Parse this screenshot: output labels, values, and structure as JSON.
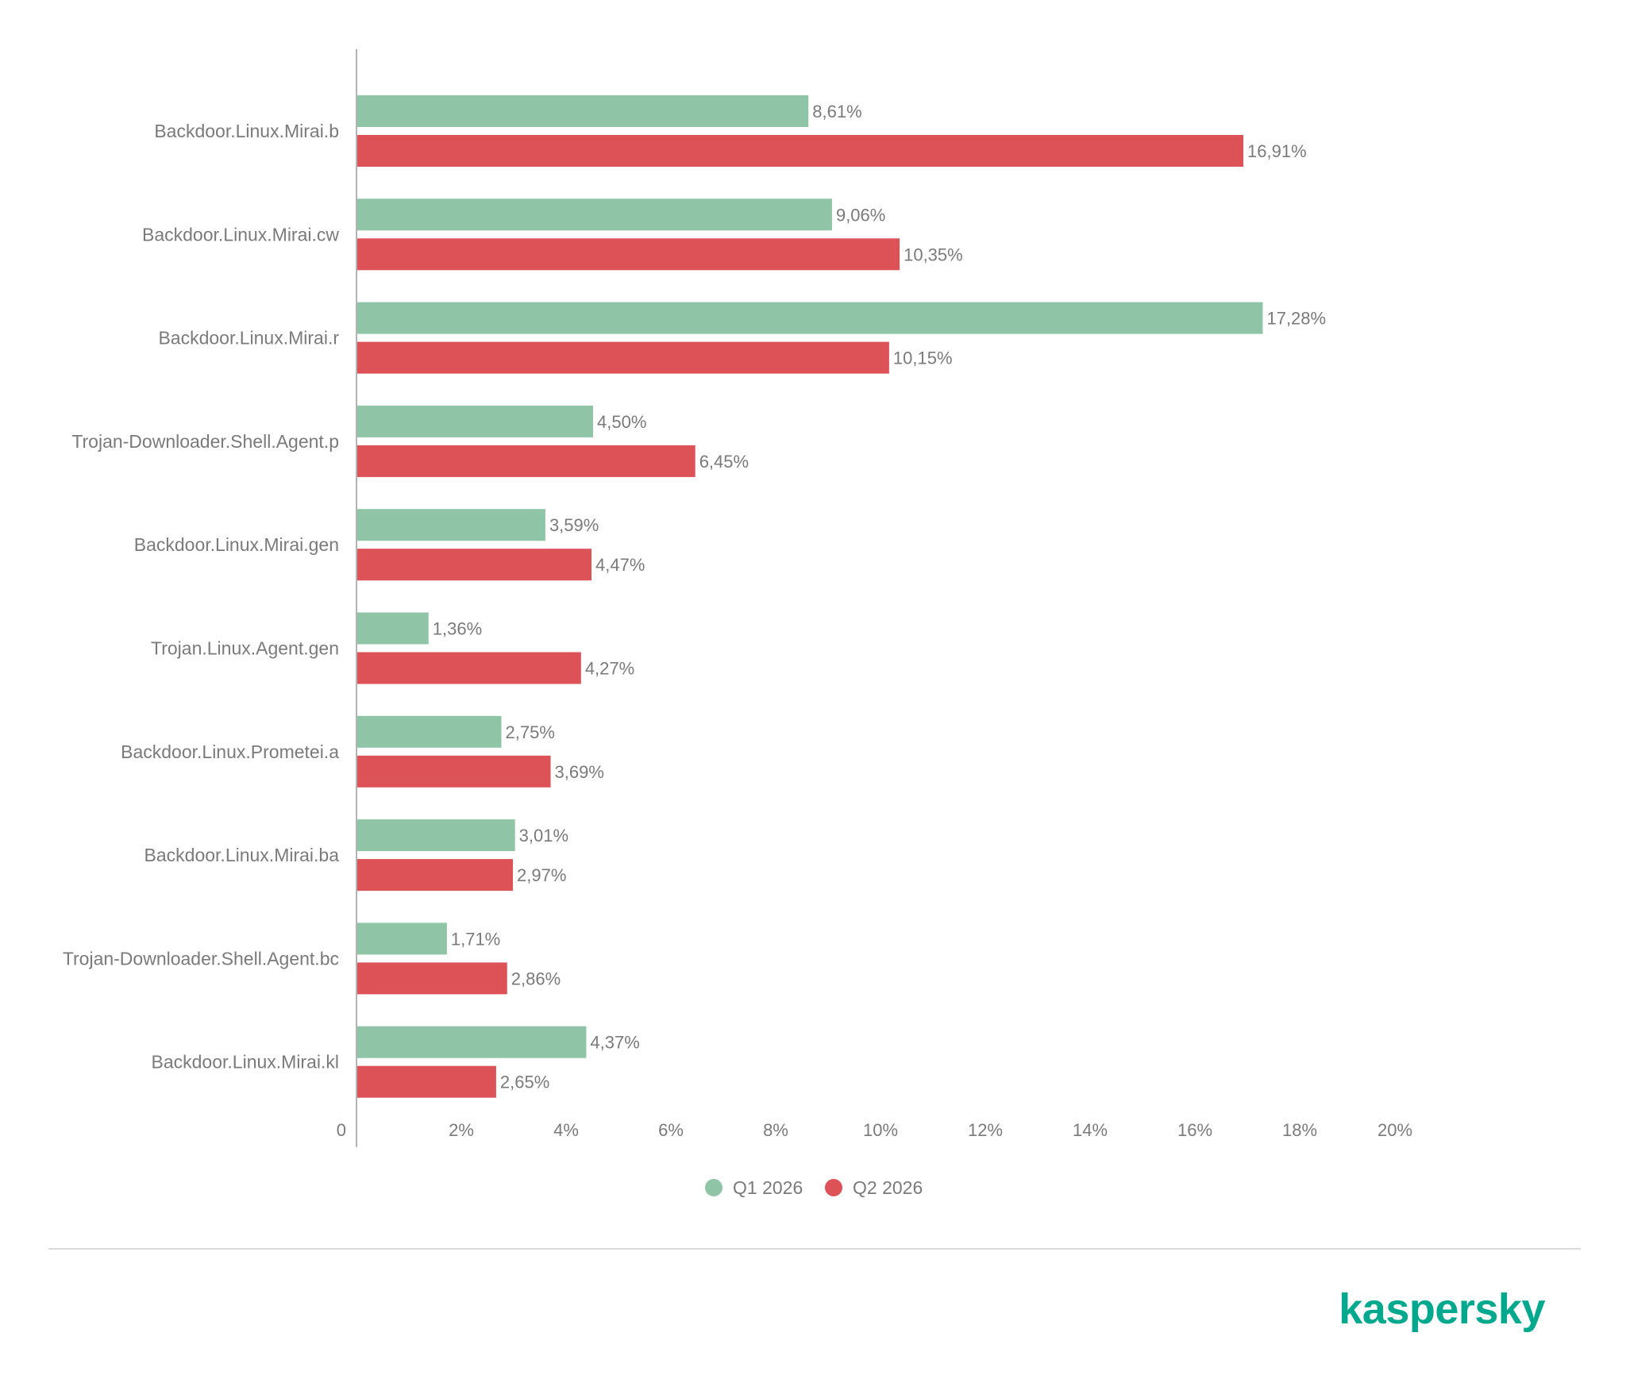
{
  "brand": "kaspersky",
  "colors": {
    "q1": "#8fc4a7",
    "q2": "#dc5257",
    "text": "#7a7a7a",
    "axis": "#9a9a9a",
    "brand": "#00a88e"
  },
  "chart_data": {
    "type": "bar",
    "orientation": "horizontal",
    "categories": [
      "Backdoor.Linux.Mirai.b",
      "Backdoor.Linux.Mirai.cw",
      "Backdoor.Linux.Mirai.r",
      "Trojan-Downloader.Shell.Agent.p",
      "Backdoor.Linux.Mirai.gen",
      "Trojan.Linux.Agent.gen",
      "Backdoor.Linux.Prometei.a",
      "Backdoor.Linux.Mirai.ba",
      "Trojan-Downloader.Shell.Agent.bc",
      "Backdoor.Linux.Mirai.kl"
    ],
    "series": [
      {
        "name": "Q1 2026",
        "color": "#8fc4a7",
        "values": [
          8.61,
          9.06,
          17.28,
          4.5,
          3.59,
          1.36,
          2.75,
          3.01,
          1.71,
          4.37
        ],
        "labels": [
          "8,61%",
          "9,06%",
          "17,28%",
          "4,50%",
          "3,59%",
          "1,36%",
          "2,75%",
          "3,01%",
          "1,71%",
          "4,37%"
        ]
      },
      {
        "name": "Q2 2026",
        "color": "#dc5257",
        "values": [
          16.91,
          10.35,
          10.15,
          6.45,
          4.47,
          4.27,
          3.69,
          2.97,
          2.86,
          2.65
        ],
        "labels": [
          "16,91%",
          "10,35%",
          "10,15%",
          "6,45%",
          "4,47%",
          "4,27%",
          "3,69%",
          "2,97%",
          "2,86%",
          "2,65%"
        ]
      }
    ],
    "xlim": [
      0,
      20
    ],
    "xticks": [
      "0",
      "2%",
      "4%",
      "6%",
      "8%",
      "10%",
      "12%",
      "14%",
      "16%",
      "18%",
      "20%"
    ],
    "grid": false,
    "legend": "bottom-center"
  }
}
